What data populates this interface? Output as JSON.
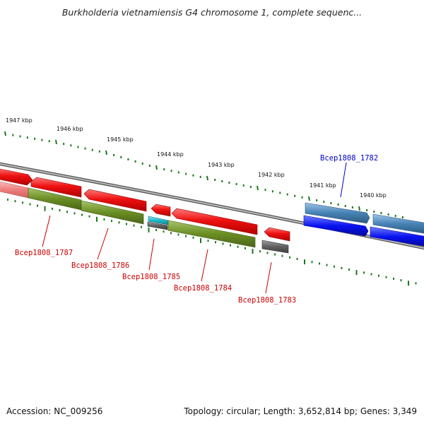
{
  "title": "Burkholderia vietnamiensis G4 chromosome 1, complete sequenc...",
  "footer": {
    "accession": "Accession: NC_009256",
    "summary": "Topology: circular; Length: 3,652,814 bp; Genes: 3,349"
  },
  "ticks": [
    "1947 kbp",
    "1946 kbp",
    "1945 kbp",
    "1944 kbp",
    "1943 kbp",
    "1942 kbp",
    "1941 kbp",
    "1940 kbp"
  ],
  "gene_labels": [
    "Bcep1808_1787",
    "Bcep1808_1786",
    "Bcep1808_1785",
    "Bcep1808_1784",
    "Bcep1808_1783",
    "Bcep1808_1782"
  ],
  "colors": {
    "tick": "#1a7a1a",
    "backbone": "#888888",
    "cds_red": "#ee1111",
    "cds_pink": "#f08080",
    "cds_olive": "#6b8e23",
    "cds_cyan": "#20b8c8",
    "cds_gray": "#606060",
    "cds_steel": "#4682b4",
    "cds_blue": "#0a12f0",
    "label_red": "#cc0000",
    "label_blue": "#0000cc"
  }
}
